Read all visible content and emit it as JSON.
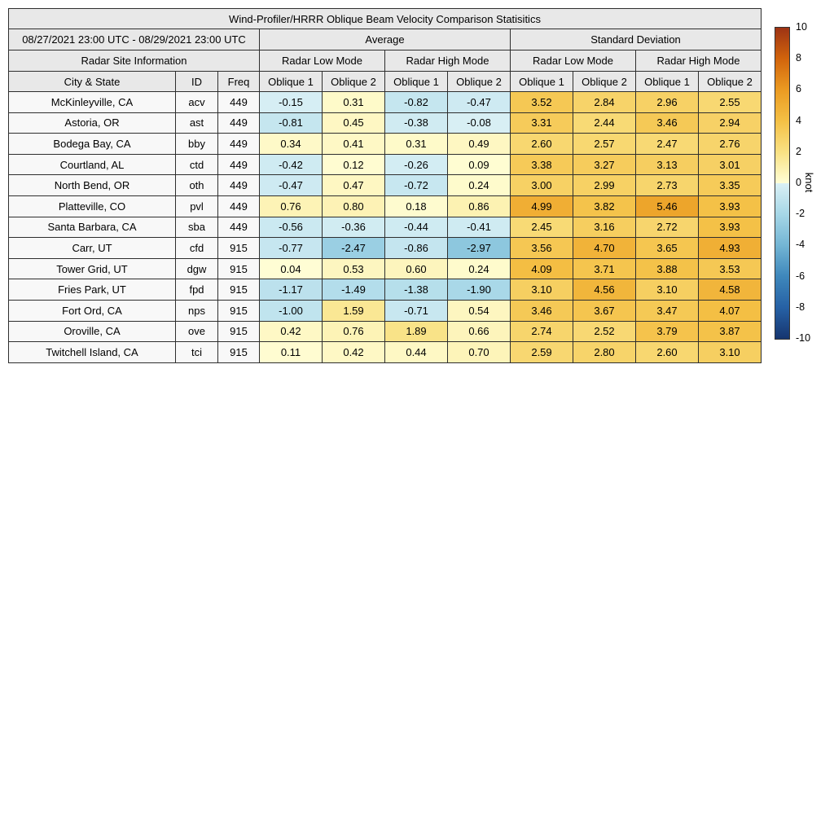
{
  "title": "Wind-Profiler/HRRR Oblique Beam Velocity Comparison Statisitics",
  "header": {
    "date_range": "08/27/2021 23:00 UTC - 08/29/2021 23:00 UTC",
    "group_average": "Average",
    "group_std": "Standard Deviation",
    "site_info": "Radar Site Information",
    "mode_low": "Radar Low Mode",
    "mode_high": "Radar High Mode",
    "col_city": "City & State",
    "col_id": "ID",
    "col_freq": "Freq",
    "col_oblique1": "Oblique 1",
    "col_oblique2": "Oblique 2"
  },
  "chart_data": {
    "type": "heatmap-table",
    "title": "Wind-Profiler/HRRR Oblique Beam Velocity Comparison Statisitics",
    "value_unit": "knot",
    "color_range": [
      -10,
      10
    ],
    "column_groups": [
      "Average / Radar Low Mode",
      "Average / Radar High Mode",
      "Standard Deviation / Radar Low Mode",
      "Standard Deviation / Radar High Mode"
    ],
    "value_columns": [
      "Avg Low Oblique 1",
      "Avg Low Oblique 2",
      "Avg High Oblique 1",
      "Avg High Oblique 2",
      "Std Low Oblique 1",
      "Std Low Oblique 2",
      "Std High Oblique 1",
      "Std High Oblique 2"
    ],
    "rows": [
      {
        "city": "McKinleyville, CA",
        "id": "acv",
        "freq": "449",
        "values": [
          -0.15,
          0.31,
          -0.82,
          -0.47,
          3.52,
          2.84,
          2.96,
          2.55
        ]
      },
      {
        "city": "Astoria, OR",
        "id": "ast",
        "freq": "449",
        "values": [
          -0.81,
          0.45,
          -0.38,
          -0.08,
          3.31,
          2.44,
          3.46,
          2.94
        ]
      },
      {
        "city": "Bodega Bay, CA",
        "id": "bby",
        "freq": "449",
        "values": [
          0.34,
          0.41,
          0.31,
          0.49,
          2.6,
          2.57,
          2.47,
          2.76
        ]
      },
      {
        "city": "Courtland, AL",
        "id": "ctd",
        "freq": "449",
        "values": [
          -0.42,
          0.12,
          -0.26,
          0.09,
          3.38,
          3.27,
          3.13,
          3.01
        ]
      },
      {
        "city": "North Bend, OR",
        "id": "oth",
        "freq": "449",
        "values": [
          -0.47,
          0.47,
          -0.72,
          0.24,
          3.0,
          2.99,
          2.73,
          3.35
        ]
      },
      {
        "city": "Platteville, CO",
        "id": "pvl",
        "freq": "449",
        "values": [
          0.76,
          0.8,
          0.18,
          0.86,
          4.99,
          3.82,
          5.46,
          3.93
        ]
      },
      {
        "city": "Santa Barbara, CA",
        "id": "sba",
        "freq": "449",
        "values": [
          -0.56,
          -0.36,
          -0.44,
          -0.41,
          2.45,
          3.16,
          2.72,
          3.93
        ]
      },
      {
        "city": "Carr, UT",
        "id": "cfd",
        "freq": "915",
        "values": [
          -0.77,
          -2.47,
          -0.86,
          -2.97,
          3.56,
          4.7,
          3.65,
          4.93
        ]
      },
      {
        "city": "Tower Grid, UT",
        "id": "dgw",
        "freq": "915",
        "values": [
          0.04,
          0.53,
          0.6,
          0.24,
          4.09,
          3.71,
          3.88,
          3.53
        ]
      },
      {
        "city": "Fries Park, UT",
        "id": "fpd",
        "freq": "915",
        "values": [
          -1.17,
          -1.49,
          -1.38,
          -1.9,
          3.1,
          4.56,
          3.1,
          4.58
        ]
      },
      {
        "city": "Fort Ord, CA",
        "id": "nps",
        "freq": "915",
        "values": [
          -1.0,
          1.59,
          -0.71,
          0.54,
          3.46,
          3.67,
          3.47,
          4.07
        ]
      },
      {
        "city": "Oroville, CA",
        "id": "ove",
        "freq": "915",
        "values": [
          0.42,
          0.76,
          1.89,
          0.66,
          2.74,
          2.52,
          3.79,
          3.87
        ]
      },
      {
        "city": "Twitchell Island, CA",
        "id": "tci",
        "freq": "915",
        "values": [
          0.11,
          0.42,
          0.44,
          0.7,
          2.59,
          2.8,
          2.6,
          3.1
        ]
      }
    ]
  },
  "colorbar": {
    "label": "knot",
    "ticks": [
      10,
      8,
      6,
      4,
      2,
      0,
      -2,
      -4,
      -6,
      -8,
      -10
    ],
    "vmin": -10,
    "vmax": 10,
    "stops": [
      {
        "v": -10,
        "c": "#16356f"
      },
      {
        "v": -8,
        "c": "#2661a5"
      },
      {
        "v": -6,
        "c": "#3e87bb"
      },
      {
        "v": -4,
        "c": "#73b5d4"
      },
      {
        "v": -2,
        "c": "#a6d7e7"
      },
      {
        "v": -0.001,
        "c": "#daf0f5"
      },
      {
        "v": 0,
        "c": "#fffed6"
      },
      {
        "v": 2,
        "c": "#f9e183"
      },
      {
        "v": 4,
        "c": "#f4c045"
      },
      {
        "v": 6,
        "c": "#eb9b22"
      },
      {
        "v": 8,
        "c": "#d2640c"
      },
      {
        "v": 10,
        "c": "#9d3314"
      }
    ]
  },
  "colors": {
    "header_bg": "#e8e8e8",
    "info_bg": "#f8f8f8",
    "border": "#2e2e2e"
  }
}
